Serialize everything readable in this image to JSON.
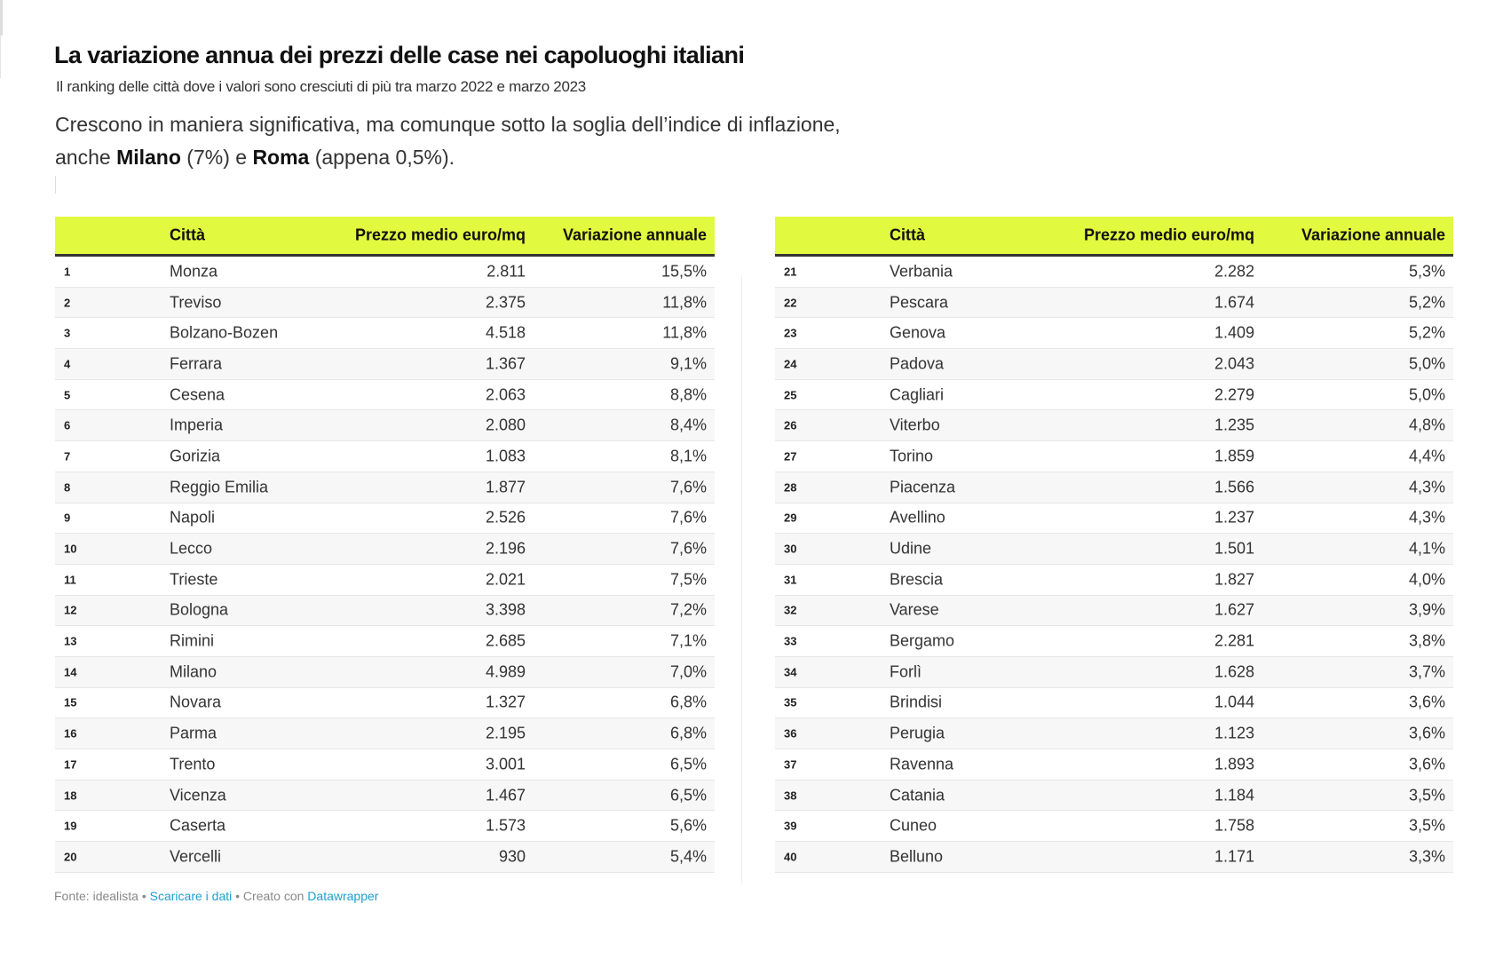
{
  "title": "La variazione annua dei prezzi delle case nei capoluoghi italiani",
  "subtitle": "Il ranking delle città dove i valori sono cresciuti di più tra marzo 2022 e marzo 2023",
  "intro": {
    "line1": "Crescono in maniera significativa, ma comunque sotto la soglia dell’indice di inflazione,",
    "pre": "anche ",
    "milano": "Milano",
    "mid": " (7%) e ",
    "roma": "Roma",
    "post": " (appena 0,5%)."
  },
  "columns": {
    "city": "Città",
    "price": "Prezzo medio euro/mq",
    "change": "Variazione annuale"
  },
  "accent": "#e1f93f",
  "tables": [
    [
      [
        "1",
        "Monza",
        "2.811",
        "15,5%"
      ],
      [
        "2",
        "Treviso",
        "2.375",
        "11,8%"
      ],
      [
        "3",
        "Bolzano-Bozen",
        "4.518",
        "11,8%"
      ],
      [
        "4",
        "Ferrara",
        "1.367",
        "9,1%"
      ],
      [
        "5",
        "Cesena",
        "2.063",
        "8,8%"
      ],
      [
        "6",
        "Imperia",
        "2.080",
        "8,4%"
      ],
      [
        "7",
        "Gorizia",
        "1.083",
        "8,1%"
      ],
      [
        "8",
        "Reggio Emilia",
        "1.877",
        "7,6%"
      ],
      [
        "9",
        "Napoli",
        "2.526",
        "7,6%"
      ],
      [
        "10",
        "Lecco",
        "2.196",
        "7,6%"
      ],
      [
        "11",
        "Trieste",
        "2.021",
        "7,5%"
      ],
      [
        "12",
        "Bologna",
        "3.398",
        "7,2%"
      ],
      [
        "13",
        "Rimini",
        "2.685",
        "7,1%"
      ],
      [
        "14",
        "Milano",
        "4.989",
        "7,0%"
      ],
      [
        "15",
        "Novara",
        "1.327",
        "6,8%"
      ],
      [
        "16",
        "Parma",
        "2.195",
        "6,8%"
      ],
      [
        "17",
        "Trento",
        "3.001",
        "6,5%"
      ],
      [
        "18",
        "Vicenza",
        "1.467",
        "6,5%"
      ],
      [
        "19",
        "Caserta",
        "1.573",
        "5,6%"
      ],
      [
        "20",
        "Vercelli",
        "930",
        "5,4%"
      ]
    ],
    [
      [
        "21",
        "Verbania",
        "2.282",
        "5,3%"
      ],
      [
        "22",
        "Pescara",
        "1.674",
        "5,2%"
      ],
      [
        "23",
        "Genova",
        "1.409",
        "5,2%"
      ],
      [
        "24",
        "Padova",
        "2.043",
        "5,0%"
      ],
      [
        "25",
        "Cagliari",
        "2.279",
        "5,0%"
      ],
      [
        "26",
        "Viterbo",
        "1.235",
        "4,8%"
      ],
      [
        "27",
        "Torino",
        "1.859",
        "4,4%"
      ],
      [
        "28",
        "Piacenza",
        "1.566",
        "4,3%"
      ],
      [
        "29",
        "Avellino",
        "1.237",
        "4,3%"
      ],
      [
        "30",
        "Udine",
        "1.501",
        "4,1%"
      ],
      [
        "31",
        "Brescia",
        "1.827",
        "4,0%"
      ],
      [
        "32",
        "Varese",
        "1.627",
        "3,9%"
      ],
      [
        "33",
        "Bergamo",
        "2.281",
        "3,8%"
      ],
      [
        "34",
        "Forlì",
        "1.628",
        "3,7%"
      ],
      [
        "35",
        "Brindisi",
        "1.044",
        "3,6%"
      ],
      [
        "36",
        "Perugia",
        "1.123",
        "3,6%"
      ],
      [
        "37",
        "Ravenna",
        "1.893",
        "3,6%"
      ],
      [
        "38",
        "Catania",
        "1.184",
        "3,5%"
      ],
      [
        "39",
        "Cuneo",
        "1.758",
        "3,5%"
      ],
      [
        "40",
        "Belluno",
        "1.171",
        "3,3%"
      ]
    ]
  ],
  "footer": {
    "source": "Fonte: idealista",
    "sep": " • ",
    "download": "Scaricare i dati",
    "created": "Creato con ",
    "tool": "Datawrapper"
  }
}
